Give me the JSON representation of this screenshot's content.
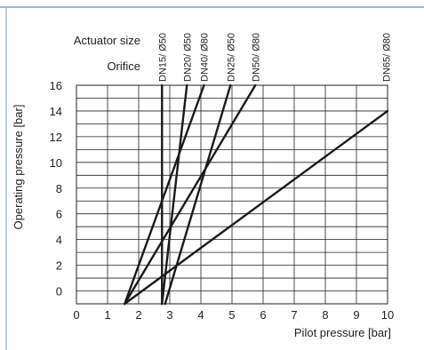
{
  "chart_data": {
    "type": "line",
    "xlabel": "Pilot pressure [bar]",
    "ylabel": "Operating pressure [bar]",
    "xlim": [
      0,
      10
    ],
    "ylim": [
      -1,
      16
    ],
    "x_ticks": [
      "0",
      "1",
      "2",
      "3",
      "4",
      "5",
      "6",
      "7",
      "8",
      "9",
      "10"
    ],
    "y_ticks": [
      "0",
      "2",
      "4",
      "6",
      "8",
      "10",
      "12",
      "14",
      "16"
    ],
    "grid": true,
    "header_labels": {
      "actuator_size": "Actuator size",
      "orifice": "Orifice"
    },
    "series": [
      {
        "name": "DN15/ Ø50",
        "label_x": 2.75,
        "points": [
          [
            2.75,
            -1
          ],
          [
            2.75,
            16
          ]
        ]
      },
      {
        "name": "DN20/ Ø50",
        "label_x": 3.55,
        "points": [
          [
            2.75,
            -1
          ],
          [
            3.55,
            16
          ]
        ]
      },
      {
        "name": "DN40/ Ø80",
        "label_x": 4.1,
        "points": [
          [
            1.55,
            -1
          ],
          [
            4.1,
            16
          ]
        ]
      },
      {
        "name": "DN25/ Ø50",
        "label_x": 4.95,
        "points": [
          [
            2.85,
            -1
          ],
          [
            4.95,
            16
          ]
        ]
      },
      {
        "name": "DN50/ Ø80",
        "label_x": 5.75,
        "points": [
          [
            1.55,
            -1
          ],
          [
            5.75,
            16
          ]
        ]
      },
      {
        "name": "DN65/ Ø80",
        "label_x": 9.95,
        "points": [
          [
            1.55,
            -1
          ],
          [
            10,
            14
          ]
        ]
      }
    ]
  },
  "colors": {
    "frame": "#6aa4cf",
    "grid": "#222222",
    "series": "#1a1a1a",
    "text": "#222222"
  }
}
